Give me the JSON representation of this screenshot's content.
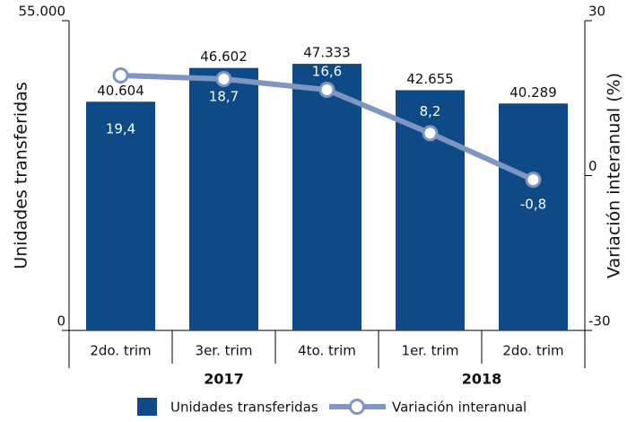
{
  "chart_data": {
    "type": "bar",
    "categories": [
      "2do. trim",
      "3er. trim",
      "4to. trim",
      "1er. trim",
      "2do. trim"
    ],
    "groups": [
      "2017",
      "2018"
    ],
    "ylabel": "Unidades transferidas",
    "y2label": "Variación interanual (%)",
    "ylim": [
      0,
      55000
    ],
    "yticks": [
      0,
      {
        "value": 55000,
        "label": "55.000"
      }
    ],
    "y2lim": [
      -30,
      30
    ],
    "y2ticks": [
      -30,
      0,
      30
    ],
    "series": [
      {
        "name": "Unidades transferidas",
        "type": "bar",
        "color": "#0e4a86",
        "values": [
          40604,
          46602,
          47333,
          42655,
          40289
        ],
        "value_labels": [
          "40.604",
          "46.602",
          "47.333",
          "42.655",
          "40.289"
        ]
      },
      {
        "name": "Variación interanual",
        "type": "line",
        "axis": "y2",
        "color": "#7f96c2",
        "values": [
          19.4,
          18.7,
          16.6,
          8.2,
          -0.8
        ],
        "value_labels": [
          "19,4",
          "18,7",
          "16,6",
          "8,2",
          "-0,8"
        ]
      }
    ],
    "legend": "bottom"
  }
}
